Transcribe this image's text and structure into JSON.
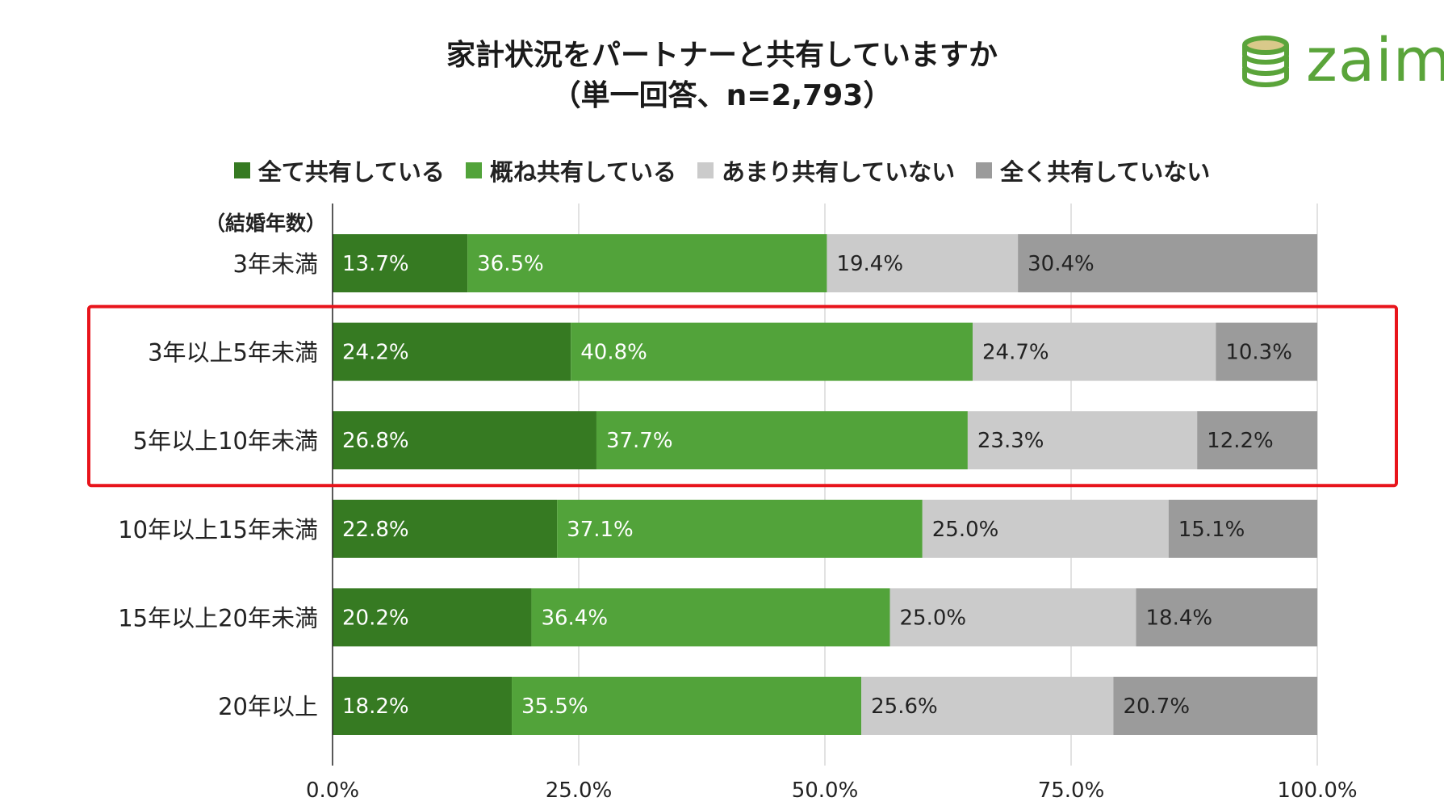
{
  "title": {
    "line1": "家計状況をパートナーと共有していますか",
    "line2": "（単一回答、n=2,793）"
  },
  "logo": {
    "text": "zaim",
    "icon": "coin-stack-icon",
    "color": "#5aa43a"
  },
  "chart_data": {
    "type": "bar",
    "orientation": "horizontal",
    "stacked": "percent",
    "title": "家計状況をパートナーと共有していますか（単一回答、n=2,793）",
    "group_label": "（結婚年数）",
    "categories": [
      "3年未満",
      "3年以上5年未満",
      "5年以上10年未満",
      "10年以上15年未満",
      "15年以上20年未満",
      "20年以上"
    ],
    "series": [
      {
        "name": "全て共有している",
        "color": "#367a22",
        "values": [
          13.7,
          24.2,
          26.8,
          22.8,
          20.2,
          18.2
        ],
        "labels": [
          "13.7%",
          "24.2%",
          "26.8%",
          "22.8%",
          "20.2%",
          "18.2%"
        ],
        "label_color": "#ffffff"
      },
      {
        "name": "概ね共有している",
        "color": "#52a33a",
        "values": [
          36.5,
          40.8,
          37.7,
          37.1,
          36.4,
          35.5
        ],
        "labels": [
          "36.5%",
          "40.8%",
          "37.7%",
          "37.1%",
          "36.4%",
          "35.5%"
        ],
        "label_color": "#ffffff"
      },
      {
        "name": "あまり共有していない",
        "color": "#cbcbcb",
        "values": [
          19.4,
          24.7,
          23.3,
          25.0,
          25.0,
          25.6
        ],
        "labels": [
          "19.4%",
          "24.7%",
          "23.3%",
          "25.0%",
          "25.0%",
          "25.6%"
        ],
        "label_color": "#222222"
      },
      {
        "name": "全く共有していない",
        "color": "#9b9b9b",
        "values": [
          30.4,
          10.3,
          12.2,
          15.1,
          18.4,
          20.7
        ],
        "labels": [
          "30.4%",
          "10.3%",
          "12.2%",
          "15.1%",
          "18.4%",
          "20.7%"
        ],
        "label_color": "#222222"
      }
    ],
    "xlim": [
      0,
      100
    ],
    "xticks": [
      0,
      25,
      50,
      75,
      100
    ],
    "xtick_labels": [
      "0.0%",
      "25.0%",
      "50.0%",
      "75.0%",
      "100.0%"
    ],
    "grid": true,
    "legend_position": "top-center",
    "highlight": {
      "categories": [
        "3年以上5年未満",
        "5年以上10年未満"
      ],
      "color": "#e8141b"
    }
  }
}
